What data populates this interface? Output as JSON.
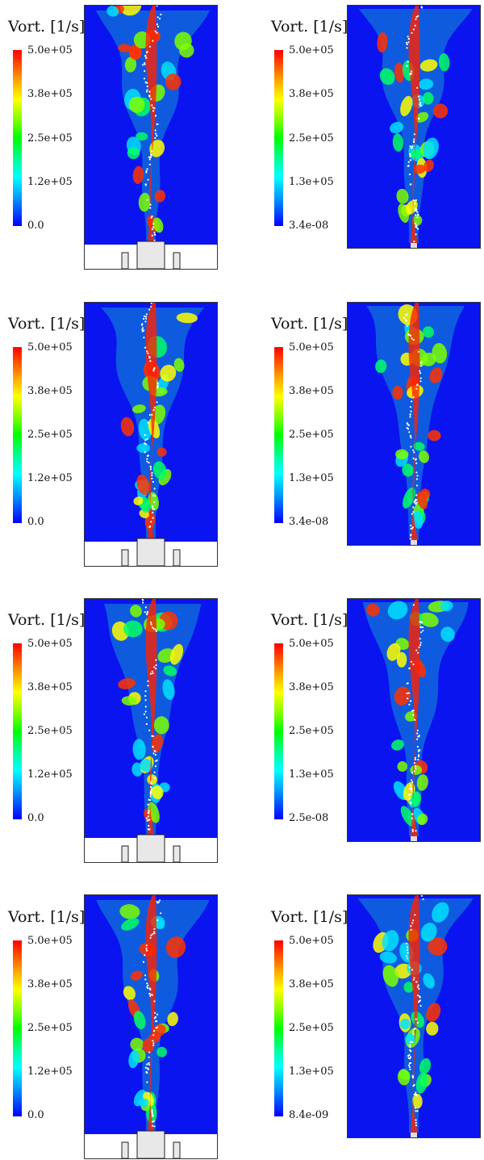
{
  "panels": [
    {
      "title": "Vort. [1/s]",
      "ticks": [
        "5.0e+05",
        "3.8e+05",
        "2.5e+05",
        "1.2e+05",
        "0.0"
      ],
      "variant": "nozzle",
      "seed": 1
    },
    {
      "title": "Vort. [1/s]",
      "ticks": [
        "5.0e+05",
        "3.8e+05",
        "2.5e+05",
        "1.3e+05",
        "3.4e-08"
      ],
      "variant": "plain",
      "seed": 2
    },
    {
      "title": "Vort. [1/s]",
      "ticks": [
        "5.0e+05",
        "3.8e+05",
        "2.5e+05",
        "1.2e+05",
        "0.0"
      ],
      "variant": "nozzle",
      "seed": 3
    },
    {
      "title": "Vort. [1/s]",
      "ticks": [
        "5.0e+05",
        "3.8e+05",
        "2.5e+05",
        "1.3e+05",
        "3.4e-08"
      ],
      "variant": "plain",
      "seed": 4
    },
    {
      "title": "Vort. [1/s]",
      "ticks": [
        "5.0e+05",
        "3.8e+05",
        "2.5e+05",
        "1.2e+05",
        "0.0"
      ],
      "variant": "nozzle",
      "seed": 5
    },
    {
      "title": "Vort. [1/s]",
      "ticks": [
        "5.0e+05",
        "3.8e+05",
        "2.5e+05",
        "1.3e+05",
        "2.5e-08"
      ],
      "variant": "plain",
      "seed": 6
    },
    {
      "title": "Vort. [1/s]",
      "ticks": [
        "5.0e+05",
        "3.8e+05",
        "2.5e+05",
        "1.2e+05",
        "0.0"
      ],
      "variant": "nozzle",
      "seed": 7
    },
    {
      "title": "Vort. [1/s]",
      "ticks": [
        "5.0e+05",
        "3.8e+05",
        "2.5e+05",
        "1.3e+05",
        "8.4e-09"
      ],
      "variant": "plain",
      "seed": 8
    }
  ],
  "colors": {
    "background": "#0a14f0",
    "low": "#0000ff",
    "high": "#ff0000"
  }
}
